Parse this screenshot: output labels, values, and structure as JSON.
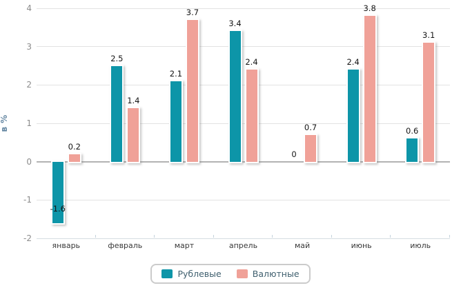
{
  "chart_data": {
    "type": "bar",
    "title": "",
    "ylabel": "в %",
    "xlabel": "",
    "categories": [
      "январь",
      "февраль",
      "март",
      "апрель",
      "май",
      "июнь",
      "июль"
    ],
    "series": [
      {
        "name": "Рублевые",
        "color": "#0d95a8",
        "values": [
          -1.6,
          2.5,
          2.1,
          3.4,
          0,
          2.4,
          0.6
        ]
      },
      {
        "name": "Валютные",
        "color": "#f0a198",
        "values": [
          0.2,
          1.4,
          3.7,
          2.4,
          0.7,
          3.8,
          3.1
        ]
      }
    ],
    "ylim": [
      -2,
      4
    ],
    "yticks": [
      4,
      3,
      2,
      1,
      0,
      -1,
      -2
    ],
    "grid": true,
    "legend_position": "bottom"
  }
}
